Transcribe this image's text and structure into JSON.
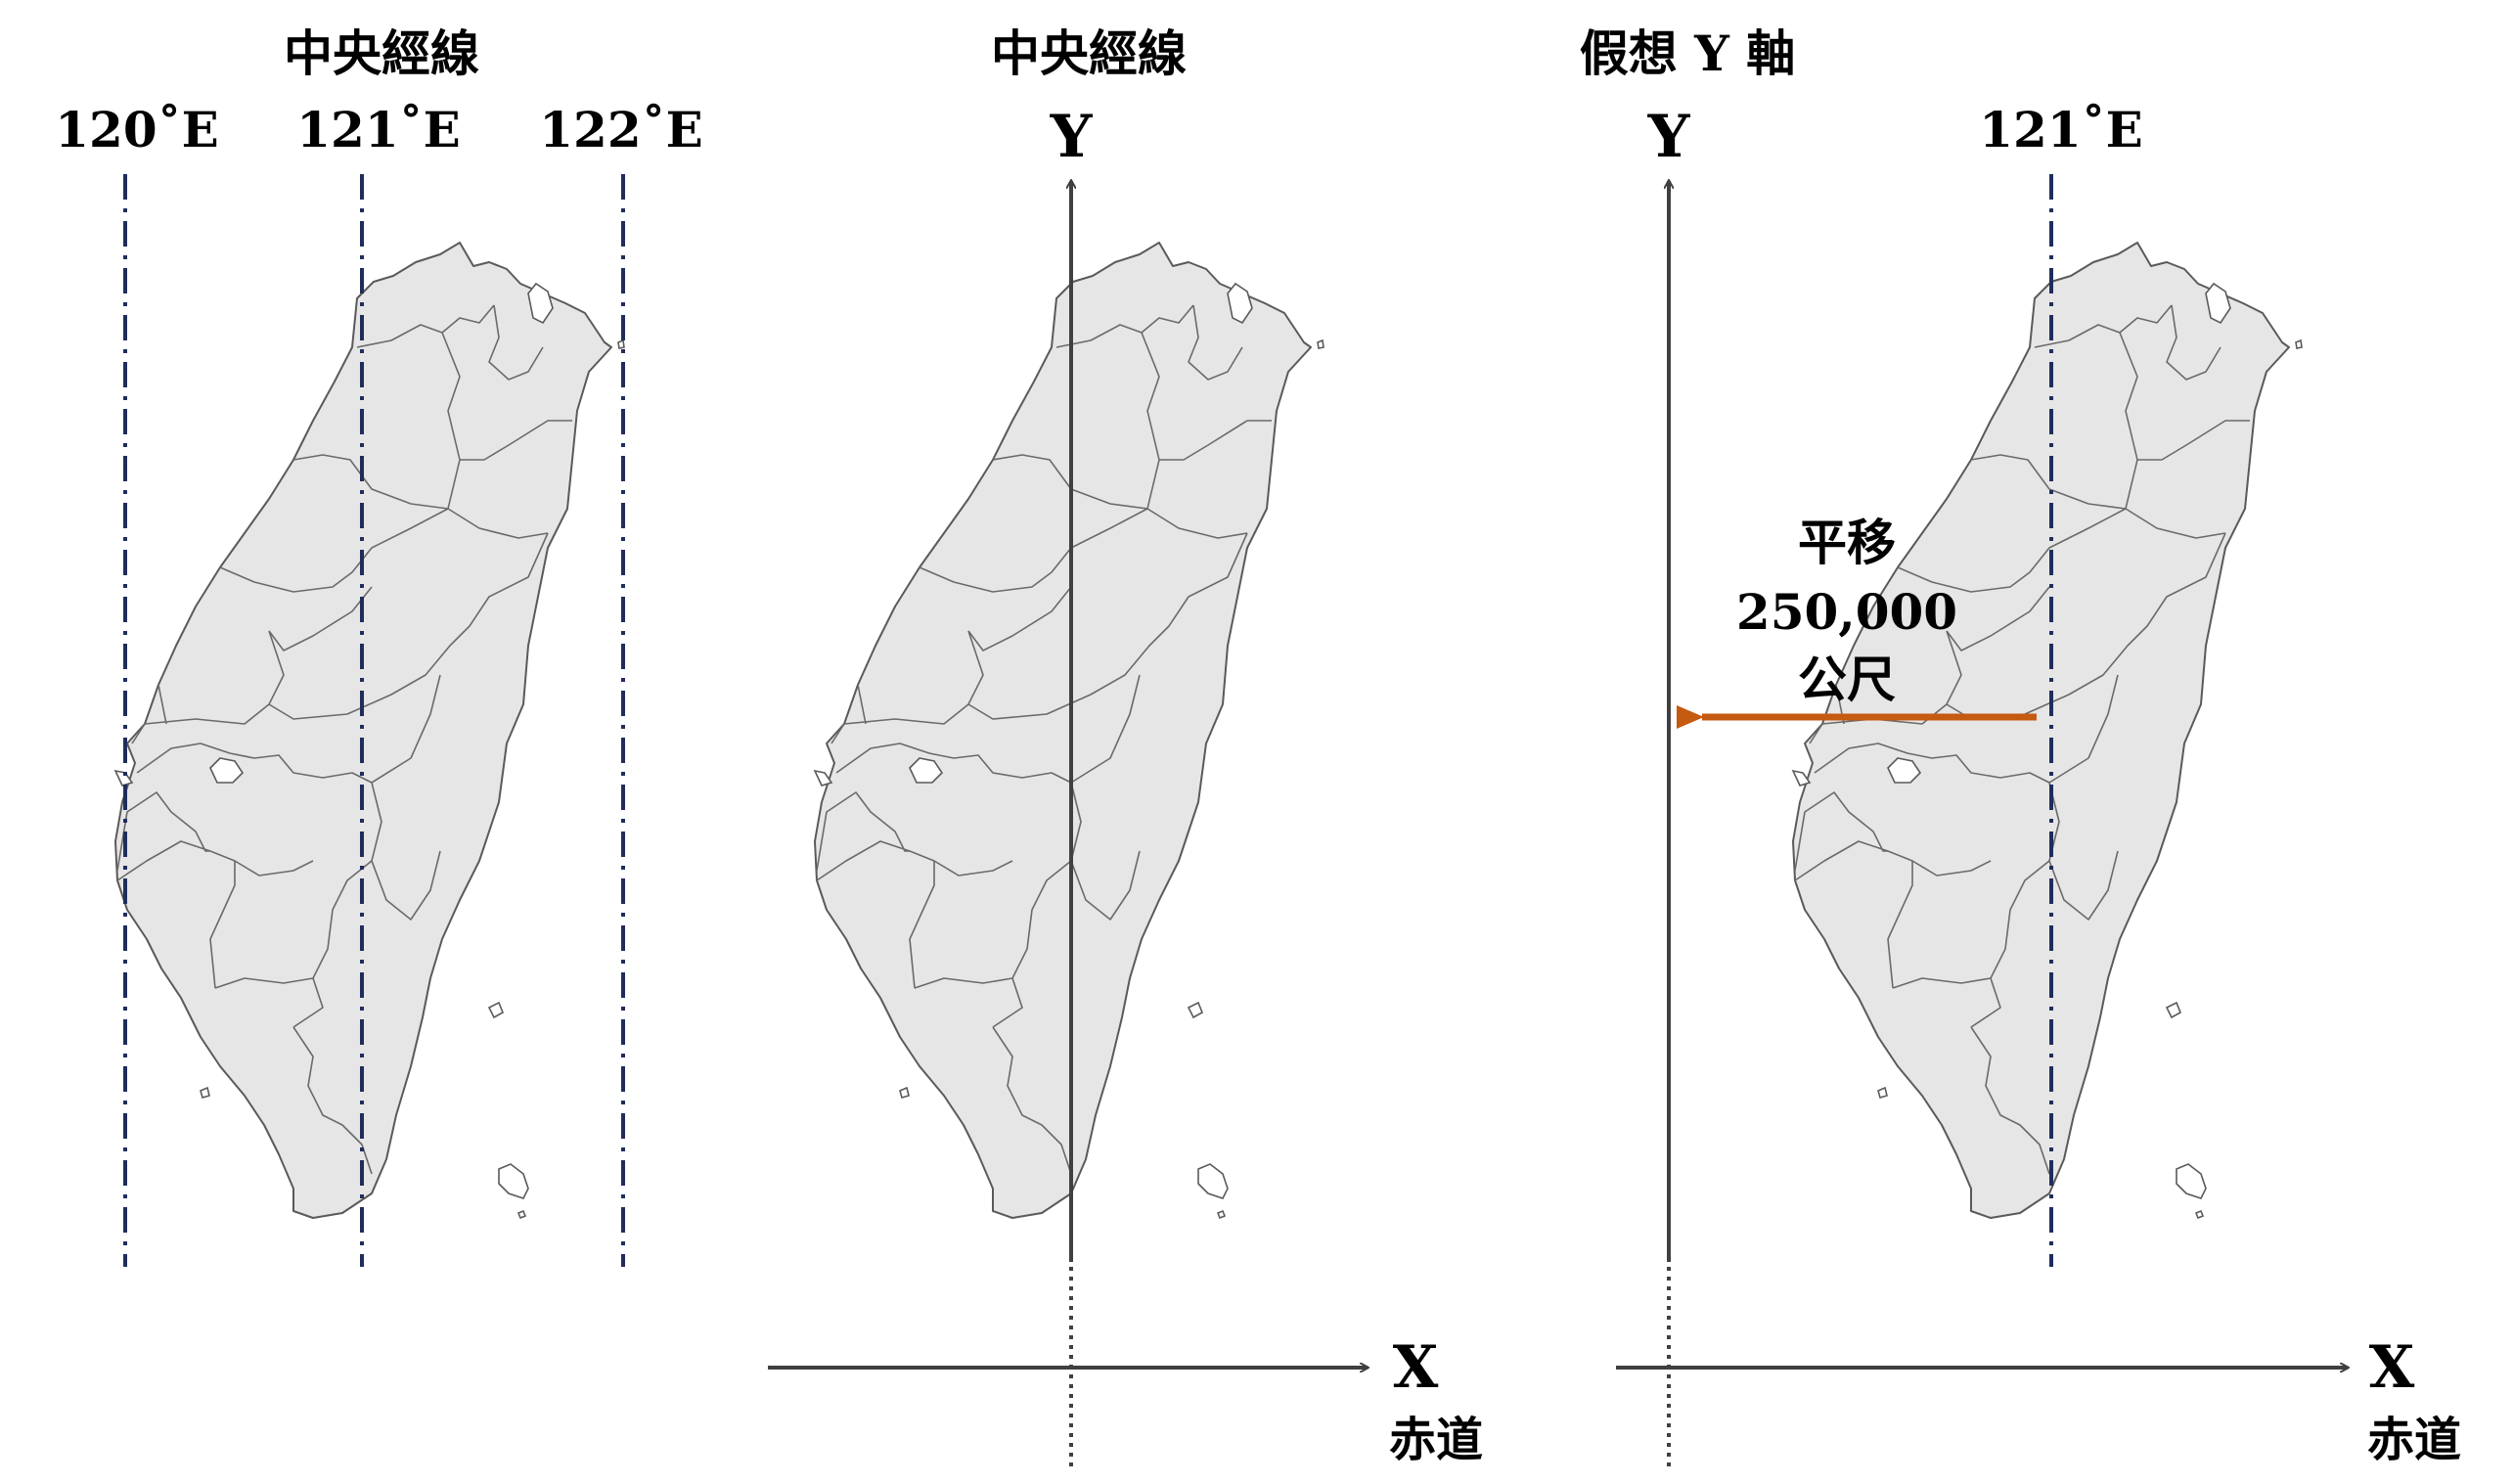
{
  "panel1": {
    "title": "中央經線",
    "meridians": [
      "120˚E",
      "121˚E",
      "122˚E"
    ]
  },
  "panel2": {
    "title": "中央經線",
    "y_axis_label": "Y",
    "x_axis_label": "X",
    "equator_label": "赤道"
  },
  "panel3": {
    "title": "假想 Y 軸",
    "y_axis_label": "Y",
    "meridian": "121˚E",
    "shift_label": [
      "平移",
      "250,000",
      "公尺"
    ],
    "x_axis_label": "X",
    "equator_label": "赤道"
  },
  "colors": {
    "meridian": "#1f2d5c",
    "axis": "#404040",
    "shift_arrow": "#c55a11",
    "land": "#e6e6e6"
  }
}
